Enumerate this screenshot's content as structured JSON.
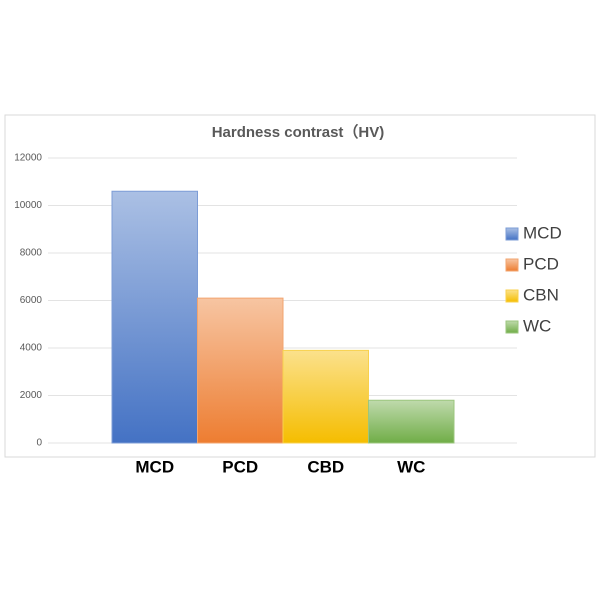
{
  "chart_data": {
    "type": "bar",
    "title": "Hardness contrast（HV)",
    "categories": [
      "MCD",
      "PCD",
      "CBD",
      "WC"
    ],
    "series": [
      {
        "name": "MCD",
        "color": "#4472c4",
        "values": [
          10600,
          null,
          null,
          null
        ]
      },
      {
        "name": "PCD",
        "color": "#ed7d31",
        "values": [
          null,
          6100,
          null,
          null
        ]
      },
      {
        "name": "CBN",
        "color": "#f5bd00",
        "values": [
          null,
          null,
          3900,
          null
        ]
      },
      {
        "name": "WC",
        "color": "#70ad47",
        "values": [
          null,
          null,
          null,
          1800
        ]
      }
    ],
    "ylim": [
      0,
      12000
    ],
    "yticks": [
      0,
      2000,
      4000,
      6000,
      8000,
      10000,
      12000
    ],
    "grid": true,
    "legend": "right"
  }
}
